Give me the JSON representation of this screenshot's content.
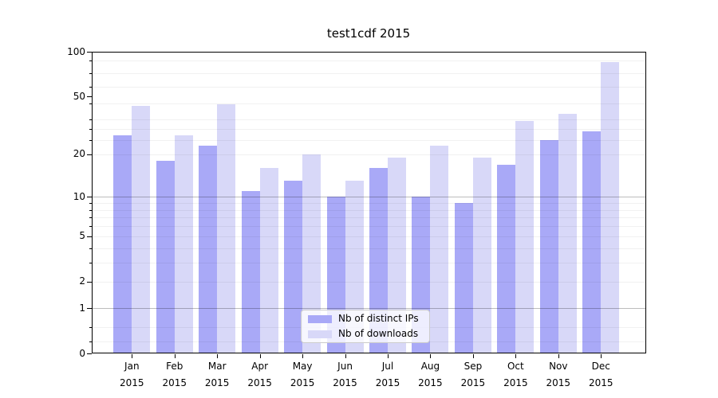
{
  "chart_data": {
    "type": "bar",
    "title": "test1cdf 2015",
    "categories": [
      "Jan 2015",
      "Feb 2015",
      "Mar 2015",
      "Apr 2015",
      "May 2015",
      "Jun 2015",
      "Jul 2015",
      "Aug 2015",
      "Sep 2015",
      "Oct 2015",
      "Nov 2015",
      "Dec 2015"
    ],
    "series": [
      {
        "name": "Nb of distinct IPs",
        "color": "#a9a9f7",
        "values": [
          27,
          18,
          23,
          11,
          13,
          10,
          16,
          10,
          9,
          17,
          25,
          29
        ]
      },
      {
        "name": "Nb of downloads",
        "color": "#d8d8f8",
        "values": [
          43,
          27,
          44,
          16,
          20,
          13,
          19,
          23,
          19,
          34,
          38,
          85
        ]
      }
    ],
    "xlabel": "",
    "ylabel": "",
    "y_ticks": [
      100,
      50,
      20,
      10,
      5,
      2,
      1,
      0
    ],
    "ylim": [
      0,
      100
    ],
    "y_scale": "log1p",
    "grid": {
      "major_lines": [
        10,
        1
      ],
      "minor_lines": [
        87,
        72,
        58,
        45,
        35,
        30,
        25,
        20,
        9,
        8,
        7,
        6,
        5,
        4,
        3,
        2,
        0.5,
        0.2
      ]
    },
    "legend": {
      "location": "lower center"
    }
  }
}
